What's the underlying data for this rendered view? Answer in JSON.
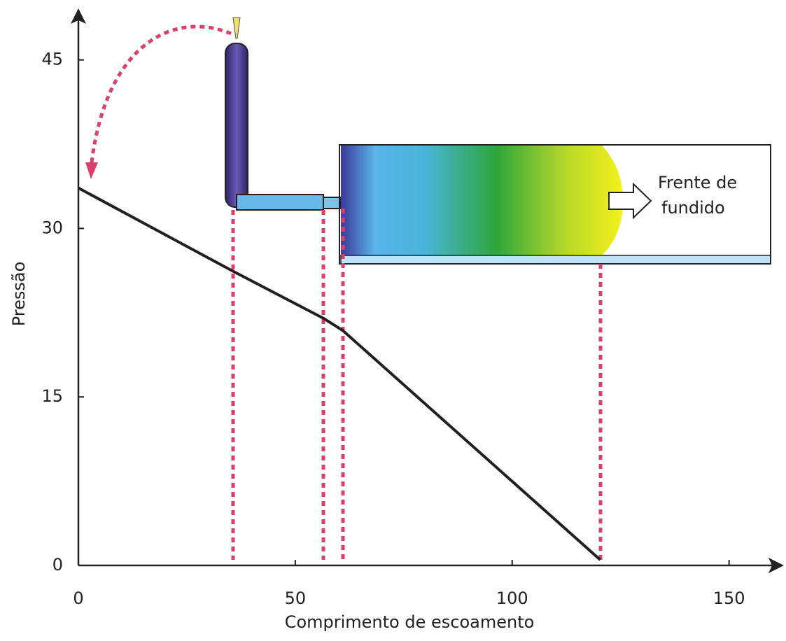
{
  "chart_data": {
    "type": "line",
    "x_label": "Comprimento de escoamento",
    "y_label": "Pressão",
    "annotation": [
      "Frente de",
      "fundido"
    ],
    "x": [
      0,
      35.6,
      56.5,
      61,
      120.3
    ],
    "series": [
      {
        "color": "#231f20",
        "values": [
          33.6,
          26.2,
          22,
          20.9,
          0.5
        ]
      }
    ],
    "xlim": [
      0,
      162
    ],
    "ylim": [
      0,
      49.4
    ],
    "xticks": [
      0,
      50,
      100,
      150
    ],
    "yticks": [
      0,
      15,
      30,
      45
    ],
    "grid": false
  }
}
